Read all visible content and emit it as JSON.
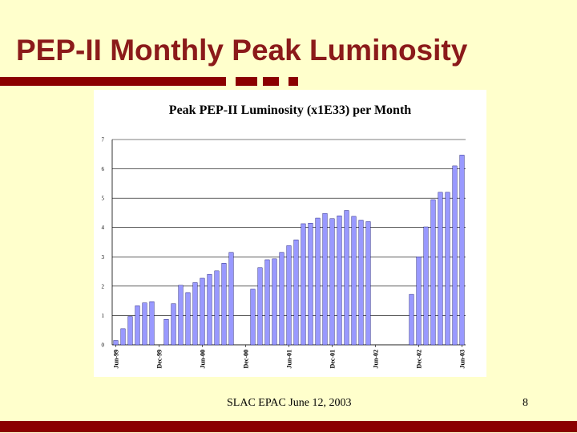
{
  "slide": {
    "title": "PEP-II Monthly Peak Luminosity",
    "footer": "SLAC EPAC June 12, 2003",
    "page_number": "8"
  },
  "colors": {
    "background": "#FFFFCC",
    "title": "#8B1A1A",
    "accent_bar": "#8B0000",
    "bar_fill": "#9999FF"
  },
  "chart_data": {
    "type": "bar",
    "title": "Peak PEP-II Luminosity (x1E33) per Month",
    "xlabel": "",
    "ylabel": "",
    "ylim": [
      0,
      7
    ],
    "yticks": [
      "0",
      "1",
      "2",
      "3",
      "4",
      "5",
      "6",
      "7"
    ],
    "grid": true,
    "legend": "none",
    "x_tick_labels": [
      {
        "index": 0,
        "label": "Jun-99"
      },
      {
        "index": 6,
        "label": "Dec-99"
      },
      {
        "index": 12,
        "label": "Jun-00"
      },
      {
        "index": 18,
        "label": "Dec-00"
      },
      {
        "index": 24,
        "label": "Jun-01"
      },
      {
        "index": 30,
        "label": "Dec-01"
      },
      {
        "index": 36,
        "label": "Jun-02"
      },
      {
        "index": 42,
        "label": "Dec-02"
      },
      {
        "index": 48,
        "label": "Jun-03"
      }
    ],
    "categories": [
      "Jun-99",
      "Jul-99",
      "Aug-99",
      "Sep-99",
      "Oct-99",
      "Nov-99",
      "Dec-99",
      "Jan-00",
      "Feb-00",
      "Mar-00",
      "Apr-00",
      "May-00",
      "Jun-00",
      "Jul-00",
      "Aug-00",
      "Sep-00",
      "Oct-00",
      "Nov-00",
      "Dec-00",
      "Jan-01",
      "Feb-01",
      "Mar-01",
      "Apr-01",
      "May-01",
      "Jun-01",
      "Jul-01",
      "Aug-01",
      "Sep-01",
      "Oct-01",
      "Nov-01",
      "Dec-01",
      "Jan-02",
      "Feb-02",
      "Mar-02",
      "Apr-02",
      "May-02",
      "Jun-02",
      "Jul-02",
      "Aug-02",
      "Sep-02",
      "Oct-02",
      "Nov-02",
      "Dec-02",
      "Jan-03",
      "Feb-03",
      "Mar-03",
      "Apr-03",
      "May-03",
      "Jun-03"
    ],
    "values": [
      0.15,
      0.55,
      0.97,
      1.33,
      1.43,
      1.47,
      0,
      0.87,
      1.4,
      2.03,
      1.78,
      2.12,
      2.27,
      2.4,
      2.52,
      2.78,
      3.15,
      0,
      0,
      1.9,
      2.63,
      2.9,
      2.93,
      3.15,
      3.38,
      3.58,
      4.13,
      4.15,
      4.32,
      4.48,
      4.3,
      4.4,
      4.58,
      4.38,
      4.25,
      4.2,
      0,
      0,
      0,
      0,
      0,
      1.72,
      3.0,
      4.02,
      4.95,
      5.2,
      5.2,
      6.1,
      6.47
    ]
  }
}
